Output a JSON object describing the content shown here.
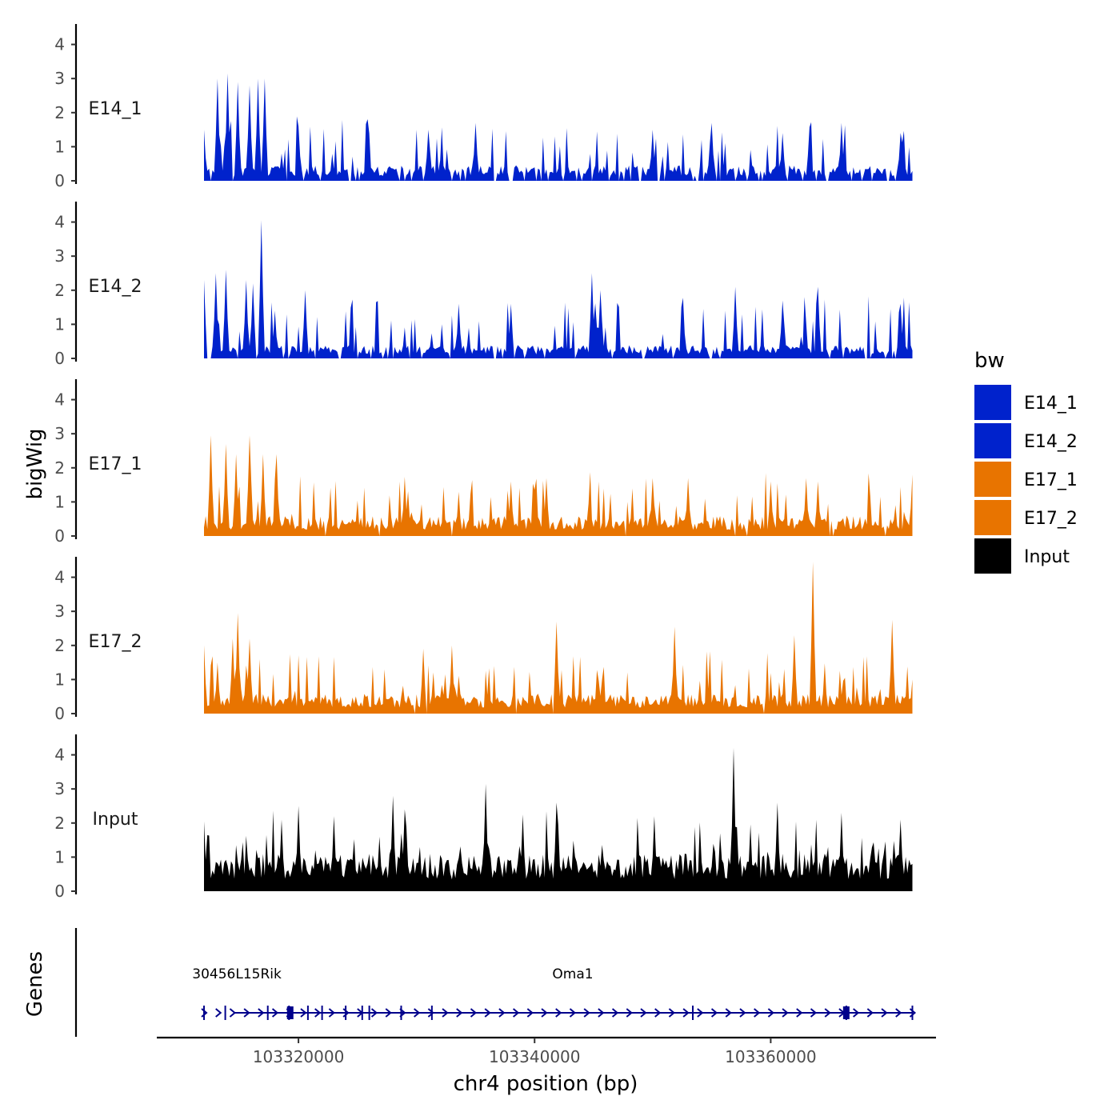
{
  "chart_data": {
    "type": "area",
    "ylabel": "bigWig",
    "xlabel": "chr4 position (bp)",
    "genes_label": "Genes",
    "xlim": [
      103308000,
      103374000
    ],
    "data_range": [
      103312000,
      103372000
    ],
    "x_ticks": [
      103320000,
      103340000,
      103360000
    ],
    "x_tick_labels": [
      "103320000",
      "103340000",
      "103360000"
    ],
    "ylim": [
      0,
      4.6
    ],
    "y_ticks": [
      0,
      1,
      2,
      3,
      4
    ],
    "y_tick_labels": [
      "0",
      "1",
      "2",
      "3",
      "4"
    ],
    "legend": {
      "title": "bw",
      "position": "right",
      "entries": [
        {
          "label": "E14_1",
          "color": "#0022CC"
        },
        {
          "label": "E14_2",
          "color": "#0022CC"
        },
        {
          "label": "E17_1",
          "color": "#E87400"
        },
        {
          "label": "E17_2",
          "color": "#E87400"
        },
        {
          "label": "Input",
          "color": "#000000"
        }
      ]
    },
    "series": [
      {
        "name": "E14_1",
        "color": "#0022CC",
        "seed": 11,
        "base": 0.35,
        "amp": 1.1,
        "gap": 0.16,
        "peaks": [
          [
            103312000,
            1.5
          ],
          [
            103313200,
            3.0
          ],
          [
            103314000,
            3.15
          ],
          [
            103314800,
            2.9
          ],
          [
            103315800,
            2.8
          ],
          [
            103316600,
            3.0
          ],
          [
            103317200,
            3.0
          ],
          [
            103318500,
            0.8
          ],
          [
            103320000,
            1.6
          ],
          [
            103331000,
            1.5
          ],
          [
            103335000,
            1.7
          ],
          [
            103350000,
            1.5
          ],
          [
            103355000,
            1.7
          ],
          [
            103361000,
            1.4
          ],
          [
            103366000,
            1.7
          ],
          [
            103371000,
            1.4
          ]
        ]
      },
      {
        "name": "E14_2",
        "color": "#0022CC",
        "seed": 23,
        "base": 0.3,
        "amp": 1.1,
        "gap": 0.14,
        "peaks": [
          [
            103312000,
            2.3
          ],
          [
            103313000,
            2.5
          ],
          [
            103313800,
            2.6
          ],
          [
            103315500,
            2.3
          ],
          [
            103316200,
            2.2
          ],
          [
            103316800,
            4.05
          ],
          [
            103318000,
            1.4
          ],
          [
            103320500,
            2.0
          ],
          [
            103333500,
            1.6
          ],
          [
            103338000,
            1.6
          ],
          [
            103344800,
            2.5
          ],
          [
            103345500,
            2.0
          ],
          [
            103352500,
            1.6
          ],
          [
            103357000,
            2.1
          ],
          [
            103361000,
            1.7
          ],
          [
            103364000,
            2.1
          ],
          [
            103371000,
            1.6
          ]
        ]
      },
      {
        "name": "E17_1",
        "color": "#E87400",
        "seed": 37,
        "base": 0.45,
        "amp": 1.0,
        "gap": 0.02,
        "peaks": [
          [
            103312500,
            2.95
          ],
          [
            103313800,
            2.7
          ],
          [
            103314700,
            2.4
          ],
          [
            103315800,
            2.95
          ],
          [
            103317000,
            2.4
          ],
          [
            103318200,
            2.4
          ],
          [
            103329000,
            1.7
          ],
          [
            103338000,
            1.6
          ],
          [
            103341000,
            1.7
          ],
          [
            103350000,
            1.7
          ],
          [
            103353000,
            1.7
          ],
          [
            103360000,
            1.6
          ],
          [
            103363000,
            1.7
          ],
          [
            103364000,
            1.6
          ],
          [
            103372000,
            1.8
          ]
        ]
      },
      {
        "name": "E17_2",
        "color": "#E87400",
        "seed": 53,
        "base": 0.45,
        "amp": 1.0,
        "gap": 0.02,
        "peaks": [
          [
            103312000,
            2.0
          ],
          [
            103313200,
            1.5
          ],
          [
            103314400,
            2.2
          ],
          [
            103314800,
            2.95
          ],
          [
            103315800,
            2.2
          ],
          [
            103330500,
            1.9
          ],
          [
            103333000,
            2.0
          ],
          [
            103341800,
            2.7
          ],
          [
            103351800,
            2.55
          ],
          [
            103362000,
            2.3
          ],
          [
            103363600,
            4.45
          ],
          [
            103370300,
            2.75
          ],
          [
            103372000,
            1.0
          ]
        ]
      },
      {
        "name": "Input",
        "color": "#000000",
        "seed": 71,
        "base": 0.85,
        "amp": 1.0,
        "gap": 0.0,
        "peaks": [
          [
            103312000,
            2.05
          ],
          [
            103318500,
            2.1
          ],
          [
            103320000,
            2.5
          ],
          [
            103323000,
            2.2
          ],
          [
            103328000,
            2.8
          ],
          [
            103329000,
            2.4
          ],
          [
            103335800,
            3.15
          ],
          [
            103339000,
            2.25
          ],
          [
            103341800,
            2.6
          ],
          [
            103350200,
            2.2
          ],
          [
            103356800,
            4.2
          ],
          [
            103360500,
            2.6
          ],
          [
            103366000,
            2.3
          ],
          [
            103371000,
            2.1
          ],
          [
            103372000,
            0.8
          ]
        ]
      }
    ],
    "genes": {
      "labels": [
        {
          "text": "30456L15Rik",
          "x": 103311000
        },
        {
          "text": "Oma1",
          "x": 103341500
        }
      ],
      "color": "#00008B",
      "track_start": 103312000,
      "track_end": 103372000,
      "exons": [
        103312000,
        103313800,
        103317400,
        103319200,
        103320800,
        103322000,
        103324000,
        103325400,
        103326000,
        103328700,
        103331300,
        103353400,
        103366400,
        103372000
      ],
      "thick_exons": [
        103319300,
        103366400
      ]
    }
  }
}
